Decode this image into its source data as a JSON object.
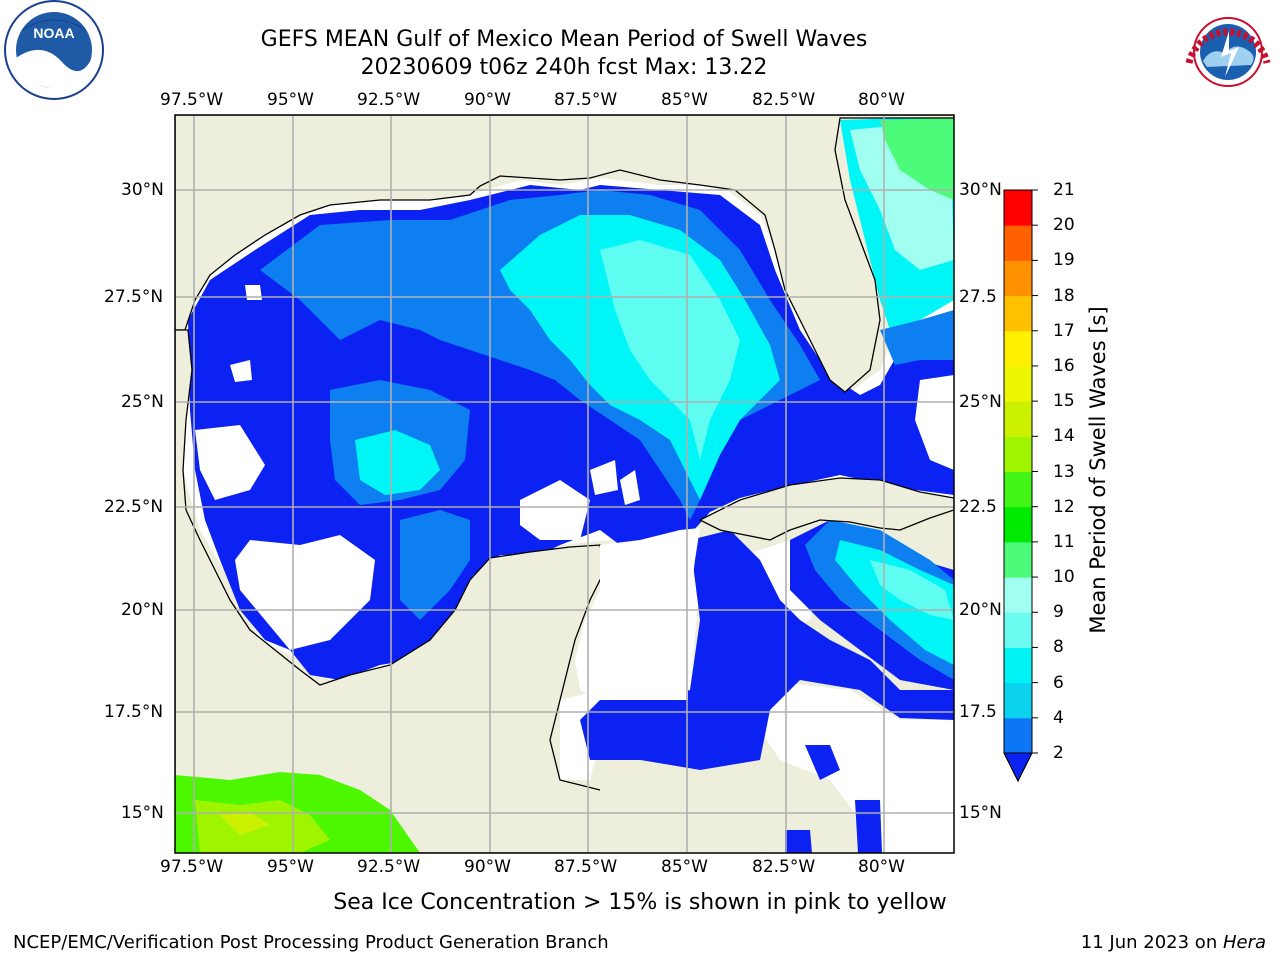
{
  "title": {
    "line1": "GEFS MEAN Gulf of Mexico Mean Period of Swell Waves",
    "line2": "20230609 t06z 240h fcst   Max: 13.22"
  },
  "logos": {
    "left": {
      "icon": "noaa-logo",
      "text": "NOAA"
    },
    "right": {
      "icon": "nws-logo",
      "text": "NATIONAL WEATHER SERVICE"
    }
  },
  "map": {
    "lon_labels": [
      "97.5°W",
      "95°W",
      "92.5°W",
      "90°W",
      "87.5°W",
      "85°W",
      "82.5°W",
      "80°W"
    ],
    "lat_labels_left": [
      "30°N",
      "27.5°N",
      "25°N",
      "22.5°N",
      "20°N",
      "17.5°N",
      "15°N"
    ],
    "lat_labels_right": [
      "30°N",
      "27.5",
      "25°N",
      "22.5",
      "20°N",
      "17.5",
      "15°N"
    ],
    "colors": {
      "land": "#eeeedc",
      "water_low": "#0b22f2",
      "water_mid": "#0e7ff0",
      "water_high": "#00f6f6",
      "water_light": "#5ffcf2"
    }
  },
  "colorbar": {
    "label": "Mean Period of Swell Waves [s]",
    "ticks": [
      "2",
      "4",
      "6",
      "8",
      "9",
      "10",
      "11",
      "12",
      "13",
      "14",
      "15",
      "16",
      "17",
      "18",
      "19",
      "20",
      "21"
    ],
    "colors": [
      "#0c76f5",
      "#0ad2ef",
      "#00f2f2",
      "#6bfbf0",
      "#a0fff0",
      "#4dfb7a",
      "#00ea00",
      "#43f516",
      "#9ff400",
      "#cbf100",
      "#edf700",
      "#fff000",
      "#ffc000",
      "#ff9000",
      "#ff6000",
      "#ff3000",
      "#ff0000"
    ]
  },
  "footer": {
    "note": "Sea Ice Concentration > 15% is shown in pink to yellow",
    "credit": "NCEP/EMC/Verification Post Processing Product Generation Branch",
    "date": "11 Jun 2023 on ",
    "host": "Hera"
  }
}
